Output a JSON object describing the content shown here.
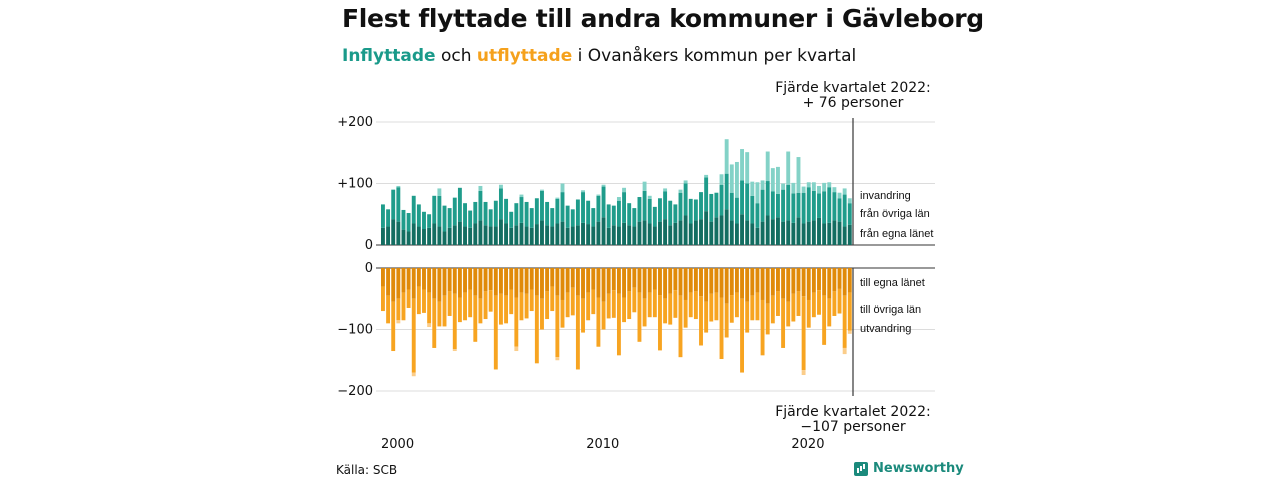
{
  "title": "Flest flyttade till andra kommuner i Gävleborg",
  "subtitle": {
    "in_word": "Inflyttade",
    "mid": " och ",
    "out_word": "utflyttade",
    "rest": " i Ovanåkers kommun per kvartal"
  },
  "source": "Källa: SCB",
  "logo": "Newsworthy",
  "colors": {
    "in_local": "#136d61",
    "in_other": "#1f9c8b",
    "in_abroad": "#83d2c7",
    "out_local": "#e08a0a",
    "out_other": "#f7a421",
    "out_abroad": "#fbcd8a",
    "grid": "#dcdcdc",
    "axis": "#333333"
  },
  "chart_data": {
    "type": "bar",
    "stacked": true,
    "top": {
      "yticks": [
        "+200",
        "+100",
        "0"
      ],
      "tick_values": [
        200,
        100,
        0
      ],
      "ylim": [
        0,
        200
      ],
      "legend": [
        "invandring",
        "från övriga län",
        "från egna länet"
      ],
      "annotation_line1": "Fjärde kvartalet 2022:",
      "annotation_line2": "+ 76 personer"
    },
    "bottom": {
      "yticks": [
        "0",
        "−100",
        "−200"
      ],
      "tick_values": [
        0,
        -100,
        -200
      ],
      "ylim": [
        -200,
        0
      ],
      "legend": [
        "till egna länet",
        "till övriga län",
        "utvandring"
      ],
      "annotation_line1": "Fjärde kvartalet 2022:",
      "annotation_line2": "−107 personer"
    },
    "xticks": [
      "2000",
      "2010",
      "2020"
    ],
    "x_start": 2000,
    "quarters": 92,
    "series_in": [
      {
        "name": "från egna länet",
        "values": [
          28,
          30,
          42,
          38,
          25,
          22,
          35,
          30,
          26,
          28,
          35,
          30,
          22,
          28,
          32,
          38,
          30,
          28,
          35,
          40,
          32,
          30,
          30,
          42,
          35,
          28,
          32,
          36,
          30,
          28,
          34,
          40,
          32,
          30,
          35,
          38,
          28,
          30,
          32,
          36,
          34,
          30,
          38,
          45,
          28,
          32,
          30,
          36,
          32,
          30,
          38,
          40,
          35,
          30,
          38,
          42,
          32,
          36,
          40,
          48,
          35,
          40,
          42,
          55,
          38,
          45,
          48,
          58,
          40,
          35,
          50,
          40,
          35,
          28,
          38,
          48,
          42,
          45,
          38,
          40,
          36,
          45,
          35,
          38,
          40,
          44,
          35,
          36,
          40,
          38,
          30,
          33
        ]
      },
      {
        "name": "från övriga län",
        "values": [
          38,
          28,
          48,
          56,
          32,
          30,
          45,
          36,
          28,
          22,
          45,
          50,
          42,
          32,
          45,
          55,
          38,
          28,
          35,
          48,
          38,
          28,
          42,
          50,
          40,
          26,
          36,
          42,
          40,
          32,
          42,
          48,
          38,
          30,
          40,
          48,
          36,
          28,
          42,
          50,
          38,
          30,
          42,
          50,
          38,
          32,
          42,
          50,
          36,
          30,
          40,
          48,
          40,
          32,
          38,
          45,
          40,
          30,
          45,
          52,
          40,
          34,
          44,
          55,
          45,
          40,
          50,
          58,
          45,
          42,
          55,
          60,
          45,
          40,
          52,
          56,
          45,
          38,
          52,
          58,
          48,
          40,
          50,
          56,
          48,
          40,
          52,
          58,
          46,
          38,
          52,
          35
        ]
      },
      {
        "name": "invandring",
        "values": [
          0,
          0,
          0,
          2,
          0,
          0,
          0,
          0,
          0,
          0,
          0,
          12,
          0,
          0,
          0,
          0,
          0,
          0,
          0,
          8,
          0,
          0,
          0,
          6,
          0,
          0,
          0,
          4,
          0,
          0,
          0,
          2,
          0,
          0,
          2,
          14,
          0,
          0,
          0,
          3,
          0,
          0,
          2,
          3,
          0,
          0,
          6,
          7,
          0,
          0,
          0,
          15,
          5,
          0,
          0,
          5,
          0,
          0,
          5,
          5,
          0,
          0,
          0,
          4,
          0,
          0,
          17,
          56,
          46,
          58,
          51,
          51,
          23,
          34,
          15,
          48,
          38,
          44,
          10,
          54,
          17,
          58,
          10,
          8,
          14,
          12,
          14,
          8,
          8,
          9,
          10,
          8
        ]
      }
    ],
    "series_out": [
      {
        "name": "till egna länet",
        "values": [
          30,
          45,
          55,
          50,
          40,
          35,
          50,
          30,
          35,
          40,
          50,
          55,
          45,
          38,
          42,
          48,
          40,
          35,
          45,
          50,
          38,
          36,
          45,
          42,
          45,
          35,
          48,
          40,
          42,
          35,
          45,
          50,
          38,
          30,
          45,
          52,
          40,
          32,
          45,
          50,
          40,
          35,
          48,
          55,
          42,
          36,
          42,
          48,
          38,
          32,
          40,
          50,
          40,
          35,
          44,
          50,
          42,
          36,
          45,
          52,
          40,
          38,
          46,
          55,
          42,
          40,
          48,
          58,
          44,
          40,
          50,
          55,
          45,
          40,
          52,
          58,
          45,
          38,
          50,
          55,
          42,
          38,
          46,
          52,
          40,
          36,
          45,
          50,
          38,
          34,
          45,
          40
        ]
      },
      {
        "name": "till övriga län",
        "values": [
          40,
          45,
          80,
          35,
          45,
          30,
          120,
          45,
          38,
          50,
          80,
          40,
          50,
          40,
          90,
          40,
          45,
          45,
          75,
          40,
          45,
          35,
          120,
          50,
          45,
          40,
          80,
          45,
          40,
          35,
          110,
          50,
          45,
          40,
          100,
          45,
          40,
          45,
          120,
          55,
          45,
          40,
          80,
          45,
          40,
          45,
          100,
          40,
          45,
          40,
          80,
          45,
          40,
          45,
          90,
          40,
          50,
          45,
          100,
          45,
          40,
          45,
          80,
          50,
          45,
          45,
          100,
          55,
          45,
          40,
          120,
          50,
          40,
          45,
          90,
          50,
          45,
          40,
          80,
          40,
          45,
          40,
          120,
          45,
          40,
          40,
          80,
          45,
          40,
          40,
          85,
          62
        ]
      },
      {
        "name": "utvandring",
        "values": [
          0,
          0,
          0,
          5,
          0,
          0,
          6,
          0,
          0,
          6,
          0,
          0,
          0,
          0,
          3,
          0,
          0,
          0,
          0,
          0,
          0,
          0,
          0,
          0,
          0,
          0,
          7,
          0,
          0,
          0,
          0,
          0,
          0,
          0,
          5,
          0,
          0,
          0,
          0,
          0,
          0,
          0,
          0,
          0,
          0,
          0,
          0,
          0,
          0,
          0,
          0,
          0,
          0,
          0,
          0,
          0,
          0,
          0,
          0,
          0,
          0,
          0,
          0,
          0,
          0,
          0,
          0,
          0,
          0,
          0,
          0,
          0,
          0,
          0,
          0,
          0,
          0,
          0,
          0,
          0,
          0,
          0,
          8,
          0,
          0,
          0,
          0,
          0,
          0,
          0,
          10,
          5
        ]
      }
    ]
  }
}
